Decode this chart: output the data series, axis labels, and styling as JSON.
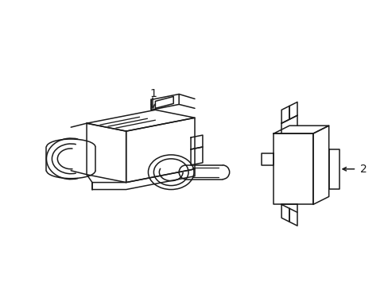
{
  "background_color": "#ffffff",
  "line_color": "#1a1a1a",
  "line_width": 1.1,
  "label1": "1",
  "label2": "2",
  "fig_width": 4.89,
  "fig_height": 3.6,
  "dpi": 100
}
